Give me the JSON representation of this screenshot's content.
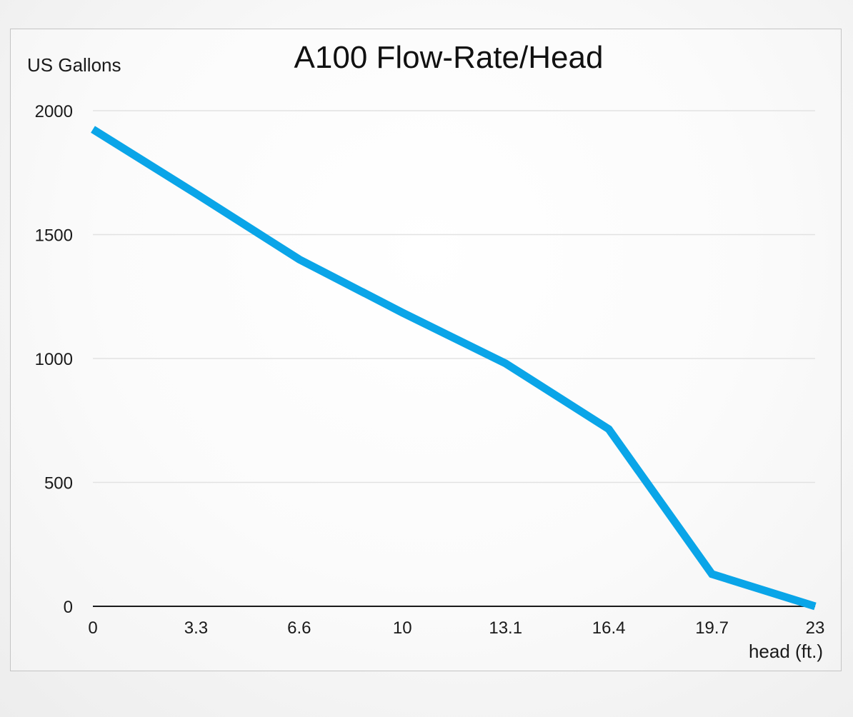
{
  "chart_data": {
    "type": "line",
    "title": "A100 Flow-Rate/Head",
    "ylabel": "US Gallons",
    "xlabel": "head (ft.)",
    "categories": [
      "0",
      "3.3",
      "6.6",
      "10",
      "13.1",
      "16.4",
      "19.7",
      "23"
    ],
    "y_ticks": [
      "0",
      "500",
      "1000",
      "1500",
      "2000"
    ],
    "ylim": [
      0,
      2000
    ],
    "grid": true,
    "legend": "none",
    "series": [
      {
        "values": [
          1925,
          1665,
          1400,
          1185,
          980,
          715,
          130,
          0
        ]
      }
    ],
    "line_color": "#0aa5e8",
    "grid_color": "#e2e2e2",
    "axis_color": "#1a1a1a"
  }
}
